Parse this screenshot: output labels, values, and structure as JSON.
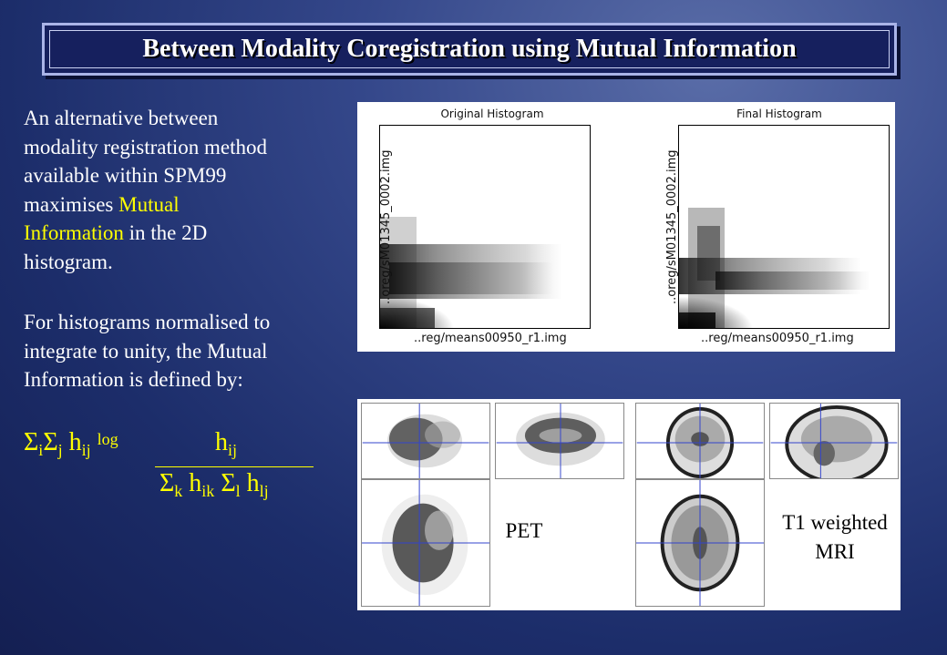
{
  "title": "Between Modality Coregistration using Mutual Information",
  "paragraph1": {
    "line1": "An alternative between",
    "line2": "modality registration method",
    "line3": "available within SPM99",
    "line4_pre": "maximises ",
    "line4_highlight": "Mutual",
    "line5_highlight": "Information",
    "line5_post": " in the 2D",
    "line6": "histogram."
  },
  "paragraph2": {
    "line1": "For histograms normalised to",
    "line2": "integrate to unity, the Mutual",
    "line3": "Information is defined by:"
  },
  "formula": {
    "sigma": "Σ",
    "sub_i": "i",
    "sub_j": "j",
    "h": "h",
    "sub_ij": "ij",
    "log": "log",
    "numerator_h": "h",
    "numerator_sub": "ij",
    "den_sigma1": "Σ",
    "den_sub_k": "k",
    "den_h1": "h",
    "den_sub_ik": "ik",
    "den_sigma2": "Σ",
    "den_sub_l": "l",
    "den_h2": "h",
    "den_sub_lj": "lj"
  },
  "histograms": {
    "left_title": "Original Histogram",
    "right_title": "Final Histogram",
    "xlabel": "..reg/means00950_r1.img",
    "ylabel": "..oreg/sM01345_0002.img"
  },
  "brain_images": {
    "pet_label": "PET",
    "mri_label_line1": "T1 weighted",
    "mri_label_line2": "MRI"
  }
}
